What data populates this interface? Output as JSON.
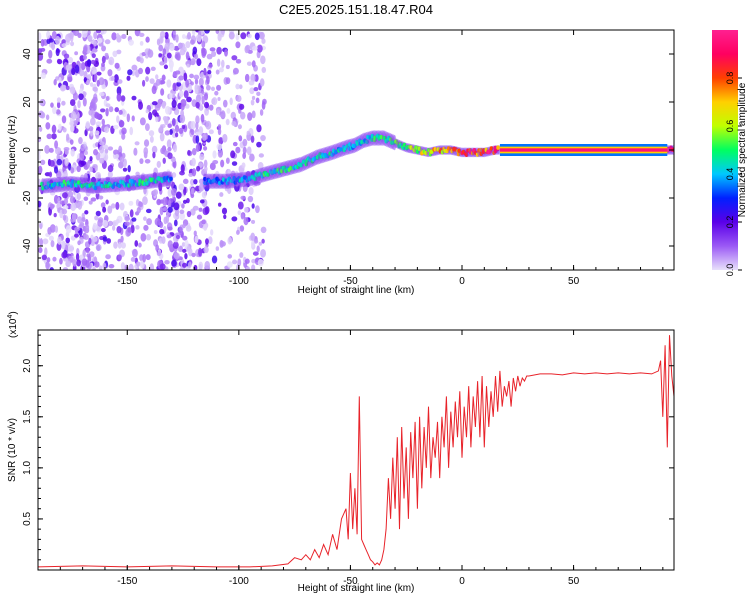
{
  "title": "C2E5.2025.151.18.47.R04",
  "chart_data": [
    {
      "type": "heatmap",
      "xlabel": "Height of straight line (km)",
      "ylabel": "Frequency (Hz)",
      "xlim": [
        -190,
        95
      ],
      "ylim": [
        -50,
        50
      ],
      "xticks": [
        -150,
        -100,
        -50,
        0,
        50
      ],
      "yticks": [
        -40,
        -20,
        0,
        20,
        40
      ],
      "colorbar": {
        "label": "Normalized spectral amplitude",
        "range": [
          0,
          1
        ],
        "ticks": [
          0.0,
          0.2,
          0.4,
          0.6,
          0.8
        ],
        "tick_labels": [
          "0.0",
          "0.2",
          "0.4",
          "0.6",
          "0.8"
        ],
        "colormap": [
          "#e8e0fb",
          "#9b59f5",
          "#5a00e8",
          "#0020ff",
          "#00c8ff",
          "#00ff60",
          "#c0ff00",
          "#ffd000",
          "#ff4000",
          "#ff0060",
          "#ff2090"
        ]
      },
      "ridge": {
        "x": [
          -188,
          -175,
          -165,
          -150,
          -140,
          -132,
          -115,
          -105,
          -95,
          -88,
          -80,
          -72,
          -65,
          -58,
          -52,
          -48,
          -44,
          -40,
          -35,
          -30,
          -25,
          -20,
          -15,
          -10,
          -5,
          0,
          5,
          10,
          15,
          20,
          30,
          40,
          50,
          60,
          70,
          80,
          88,
          92,
          95
        ],
        "y": [
          -15,
          -14,
          -15,
          -14,
          -13,
          -12,
          -13,
          -13,
          -12,
          -10,
          -8,
          -6,
          -3,
          -1,
          1,
          2,
          4,
          5,
          5,
          3,
          1,
          0,
          -1,
          0,
          0,
          -1,
          -1,
          -1,
          0,
          0,
          0,
          0,
          0,
          0,
          0,
          0,
          0,
          0,
          0
        ],
        "amplitude": [
          0.45,
          0.5,
          0.45,
          0.45,
          0.5,
          0.4,
          0.35,
          0.4,
          0.45,
          0.5,
          0.5,
          0.5,
          0.5,
          0.45,
          0.45,
          0.4,
          0.45,
          0.5,
          0.55,
          0.55,
          0.6,
          0.65,
          0.7,
          0.75,
          0.8,
          0.85,
          0.9,
          0.9,
          0.95,
          0.95,
          0.95,
          0.95,
          0.95,
          0.95,
          0.95,
          0.95,
          0.95,
          0.95,
          0.95
        ]
      },
      "noise_region": [
        -190,
        -88
      ]
    },
    {
      "type": "line",
      "xlabel": "Height of straight line (km)",
      "ylabel": "SNR (10 * v/v)",
      "yscale_label": "(x10",
      "yscale_exp": "4",
      "yscale_close": ")",
      "xlim": [
        -190,
        95
      ],
      "ylim": [
        0,
        2.35
      ],
      "xticks": [
        -150,
        -100,
        -50,
        0,
        50
      ],
      "yticks": [
        0.5,
        1.0,
        1.5,
        2.0
      ],
      "ytick_labels": [
        "0.5",
        "1.0",
        "1.5",
        "2.0"
      ],
      "color": "#e8232a",
      "series": [
        {
          "x": [
            -190,
            -170,
            -150,
            -130,
            -110,
            -95,
            -85,
            -78,
            -75,
            -72,
            -70,
            -68,
            -66,
            -64,
            -62,
            -60,
            -58,
            -56,
            -54,
            -52,
            -51,
            -50,
            -49,
            -48,
            -47,
            -46,
            -45,
            -44,
            -43,
            -42,
            -41,
            -40,
            -39,
            -38,
            -37,
            -36,
            -35,
            -34,
            -33,
            -32,
            -31,
            -30,
            -29,
            -28,
            -27,
            -26,
            -25,
            -24,
            -23,
            -22,
            -21,
            -20,
            -19,
            -18,
            -17,
            -16,
            -15,
            -14,
            -13,
            -12,
            -11,
            -10,
            -9,
            -8,
            -7,
            -6,
            -5,
            -4,
            -3,
            -2,
            -1,
            0,
            1,
            2,
            3,
            4,
            5,
            6,
            7,
            8,
            9,
            10,
            11,
            12,
            13,
            14,
            15,
            16,
            17,
            18,
            19,
            20,
            21,
            22,
            23,
            24,
            25,
            26,
            27,
            28,
            29,
            30,
            35,
            40,
            45,
            50,
            55,
            60,
            65,
            70,
            75,
            80,
            85,
            88,
            89,
            90,
            91,
            92,
            93,
            94,
            95
          ],
          "y": [
            0.03,
            0.04,
            0.03,
            0.04,
            0.03,
            0.03,
            0.04,
            0.06,
            0.12,
            0.1,
            0.15,
            0.1,
            0.2,
            0.12,
            0.25,
            0.15,
            0.35,
            0.2,
            0.5,
            0.6,
            0.3,
            0.95,
            0.4,
            0.8,
            0.35,
            1.7,
            0.3,
            0.25,
            0.2,
            0.15,
            0.1,
            0.08,
            0.05,
            0.07,
            0.05,
            0.1,
            0.2,
            0.4,
            0.9,
            0.5,
            1.1,
            0.6,
            1.3,
            0.4,
            1.4,
            0.7,
            1.2,
            0.5,
            1.35,
            0.9,
            1.45,
            0.6,
            1.5,
            0.8,
            1.4,
            1.0,
            1.6,
            0.9,
            1.3,
            1.1,
            1.45,
            0.9,
            1.5,
            1.2,
            1.7,
            1.0,
            1.55,
            1.2,
            1.65,
            1.3,
            1.75,
            1.1,
            1.6,
            1.3,
            1.8,
            1.2,
            1.7,
            1.4,
            1.85,
            1.3,
            1.9,
            1.2,
            1.8,
            1.4,
            1.75,
            1.5,
            1.9,
            1.55,
            1.95,
            1.6,
            1.8,
            1.7,
            1.85,
            1.6,
            1.88,
            1.75,
            1.9,
            1.8,
            1.88,
            1.85,
            1.9,
            1.9,
            1.92,
            1.92,
            1.91,
            1.93,
            1.92,
            1.93,
            1.92,
            1.93,
            1.92,
            1.93,
            1.92,
            1.95,
            2.05,
            1.5,
            2.2,
            1.2,
            2.3,
            1.9,
            1.7
          ]
        }
      ]
    }
  ]
}
